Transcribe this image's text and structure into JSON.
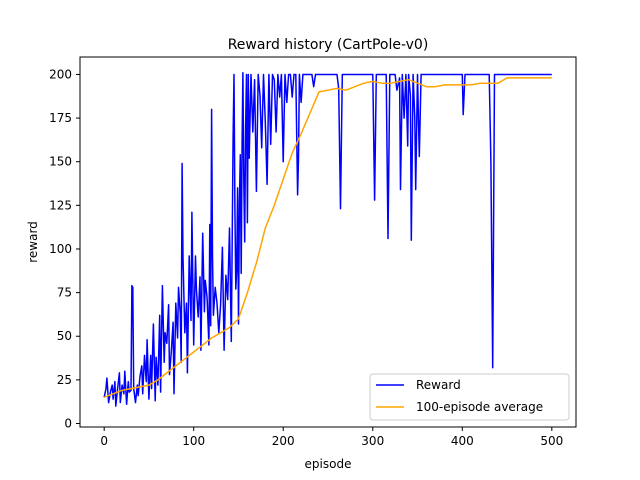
{
  "chart_data": {
    "type": "line",
    "title": "Reward history (CartPole-v0)",
    "xlabel": "episode",
    "ylabel": "reward",
    "xlim": [
      -27,
      527
    ],
    "ylim": [
      -2,
      210
    ],
    "xticks": [
      0,
      100,
      200,
      300,
      400,
      500
    ],
    "yticks": [
      0,
      25,
      50,
      75,
      100,
      125,
      150,
      175,
      200
    ],
    "grid": false,
    "legend_position": "lower-right",
    "series": [
      {
        "name": "Reward",
        "color": "#0000ff",
        "points": [
          [
            0,
            15
          ],
          [
            2,
            20
          ],
          [
            3,
            26
          ],
          [
            5,
            12
          ],
          [
            7,
            18
          ],
          [
            9,
            22
          ],
          [
            10,
            14
          ],
          [
            12,
            24
          ],
          [
            13,
            10
          ],
          [
            15,
            20
          ],
          [
            17,
            29
          ],
          [
            18,
            12
          ],
          [
            20,
            22
          ],
          [
            22,
            17
          ],
          [
            23,
            30
          ],
          [
            25,
            11
          ],
          [
            27,
            24
          ],
          [
            28,
            18
          ],
          [
            30,
            19
          ],
          [
            31,
            79
          ],
          [
            32,
            78
          ],
          [
            33,
            20
          ],
          [
            35,
            12
          ],
          [
            37,
            22
          ],
          [
            38,
            16
          ],
          [
            40,
            27
          ],
          [
            42,
            33
          ],
          [
            43,
            17
          ],
          [
            45,
            39
          ],
          [
            47,
            24
          ],
          [
            48,
            48
          ],
          [
            50,
            14
          ],
          [
            52,
            39
          ],
          [
            53,
            20
          ],
          [
            55,
            57
          ],
          [
            57,
            13
          ],
          [
            58,
            38
          ],
          [
            60,
            22
          ],
          [
            62,
            62
          ],
          [
            63,
            18
          ],
          [
            65,
            79
          ],
          [
            67,
            35
          ],
          [
            68,
            52
          ],
          [
            70,
            46
          ],
          [
            72,
            68
          ],
          [
            73,
            28
          ],
          [
            75,
            41
          ],
          [
            77,
            58
          ],
          [
            78,
            17
          ],
          [
            80,
            69
          ],
          [
            82,
            49
          ],
          [
            83,
            78
          ],
          [
            85,
            63
          ],
          [
            86,
            35
          ],
          [
            87,
            149
          ],
          [
            88,
            95
          ],
          [
            90,
            52
          ],
          [
            92,
            69
          ],
          [
            93,
            29
          ],
          [
            95,
            96
          ],
          [
            97,
            59
          ],
          [
            98,
            121
          ],
          [
            100,
            45
          ],
          [
            102,
            96
          ],
          [
            103,
            77
          ],
          [
            105,
            61
          ],
          [
            107,
            84
          ],
          [
            108,
            42
          ],
          [
            110,
            109
          ],
          [
            112,
            64
          ],
          [
            113,
            82
          ],
          [
            115,
            72
          ],
          [
            117,
            45
          ],
          [
            118,
            114
          ],
          [
            119,
            56
          ],
          [
            120,
            180
          ],
          [
            121,
            96
          ],
          [
            122,
            62
          ],
          [
            124,
            78
          ],
          [
            126,
            69
          ],
          [
            128,
            52
          ],
          [
            130,
            68
          ],
          [
            132,
            101
          ],
          [
            134,
            42
          ],
          [
            136,
            85
          ],
          [
            138,
            71
          ],
          [
            140,
            112
          ],
          [
            142,
            47
          ],
          [
            144,
            164
          ],
          [
            145,
            200
          ],
          [
            146,
            124
          ],
          [
            147,
            77
          ],
          [
            148,
            88
          ],
          [
            149,
            135
          ],
          [
            150,
            57
          ],
          [
            151,
            126
          ],
          [
            152,
            154
          ],
          [
            153,
            86
          ],
          [
            154,
            161
          ],
          [
            155,
            201
          ],
          [
            156,
            139
          ],
          [
            157,
            104
          ],
          [
            158,
            169
          ],
          [
            159,
            200
          ],
          [
            160,
            115
          ],
          [
            161,
            200
          ],
          [
            162,
            152
          ],
          [
            164,
            200
          ],
          [
            166,
            167
          ],
          [
            168,
            197
          ],
          [
            170,
            133
          ],
          [
            172,
            200
          ],
          [
            174,
            188
          ],
          [
            176,
            158
          ],
          [
            178,
            200
          ],
          [
            180,
            173
          ],
          [
            182,
            137
          ],
          [
            184,
            200
          ],
          [
            186,
            160
          ],
          [
            188,
            200
          ],
          [
            190,
            197
          ],
          [
            192,
            167
          ],
          [
            194,
            200
          ],
          [
            196,
            187
          ],
          [
            198,
            200
          ],
          [
            200,
            150
          ],
          [
            202,
            200
          ],
          [
            204,
            184
          ],
          [
            206,
            200
          ],
          [
            208,
            200
          ],
          [
            210,
            187
          ],
          [
            212,
            200
          ],
          [
            214,
            200
          ],
          [
            216,
            131
          ],
          [
            217,
            152
          ],
          [
            218,
            200
          ],
          [
            220,
            184
          ],
          [
            222,
            200
          ],
          [
            224,
            200
          ],
          [
            226,
            200
          ],
          [
            228,
            200
          ],
          [
            230,
            200
          ],
          [
            232,
            200
          ],
          [
            234,
            193
          ],
          [
            236,
            200
          ],
          [
            238,
            200
          ],
          [
            240,
            200
          ],
          [
            242,
            200
          ],
          [
            244,
            200
          ],
          [
            246,
            200
          ],
          [
            248,
            200
          ],
          [
            250,
            200
          ],
          [
            255,
            200
          ],
          [
            260,
            200
          ],
          [
            262,
            192
          ],
          [
            264,
            123
          ],
          [
            266,
            200
          ],
          [
            268,
            200
          ],
          [
            270,
            200
          ],
          [
            275,
            200
          ],
          [
            280,
            200
          ],
          [
            285,
            200
          ],
          [
            290,
            200
          ],
          [
            295,
            200
          ],
          [
            300,
            200
          ],
          [
            302,
            128
          ],
          [
            304,
            200
          ],
          [
            310,
            200
          ],
          [
            315,
            200
          ],
          [
            317,
            106
          ],
          [
            319,
            200
          ],
          [
            325,
            200
          ],
          [
            327,
            191
          ],
          [
            330,
            198
          ],
          [
            331,
            134
          ],
          [
            333,
            200
          ],
          [
            335,
            175
          ],
          [
            337,
            200
          ],
          [
            339,
            159
          ],
          [
            340,
            200
          ],
          [
            342,
            188
          ],
          [
            343,
            105
          ],
          [
            345,
            200
          ],
          [
            347,
            175
          ],
          [
            348,
            134
          ],
          [
            350,
            200
          ],
          [
            352,
            153
          ],
          [
            354,
            200
          ],
          [
            360,
            200
          ],
          [
            370,
            200
          ],
          [
            380,
            200
          ],
          [
            390,
            200
          ],
          [
            400,
            200
          ],
          [
            401,
            177
          ],
          [
            403,
            200
          ],
          [
            410,
            200
          ],
          [
            420,
            200
          ],
          [
            430,
            200
          ],
          [
            432,
            150
          ],
          [
            434,
            32
          ],
          [
            436,
            200
          ],
          [
            440,
            200
          ],
          [
            450,
            200
          ],
          [
            460,
            200
          ],
          [
            470,
            200
          ],
          [
            480,
            200
          ],
          [
            490,
            200
          ],
          [
            500,
            200
          ]
        ]
      },
      {
        "name": "100-episode average",
        "color": "#ffa500",
        "points": [
          [
            0,
            15
          ],
          [
            10,
            17
          ],
          [
            20,
            19
          ],
          [
            30,
            20
          ],
          [
            40,
            21
          ],
          [
            50,
            22
          ],
          [
            60,
            25
          ],
          [
            70,
            29
          ],
          [
            80,
            33
          ],
          [
            90,
            37
          ],
          [
            100,
            41
          ],
          [
            110,
            45
          ],
          [
            120,
            49
          ],
          [
            130,
            52
          ],
          [
            140,
            55
          ],
          [
            150,
            60
          ],
          [
            160,
            75
          ],
          [
            170,
            92
          ],
          [
            180,
            112
          ],
          [
            190,
            125
          ],
          [
            200,
            140
          ],
          [
            210,
            155
          ],
          [
            220,
            166
          ],
          [
            230,
            178
          ],
          [
            240,
            190
          ],
          [
            250,
            191
          ],
          [
            260,
            192
          ],
          [
            270,
            191
          ],
          [
            280,
            193
          ],
          [
            290,
            195
          ],
          [
            300,
            196
          ],
          [
            310,
            195
          ],
          [
            320,
            195
          ],
          [
            330,
            196
          ],
          [
            340,
            197
          ],
          [
            350,
            195
          ],
          [
            360,
            193
          ],
          [
            370,
            193
          ],
          [
            380,
            194
          ],
          [
            390,
            194
          ],
          [
            400,
            194
          ],
          [
            410,
            194
          ],
          [
            420,
            195
          ],
          [
            430,
            195
          ],
          [
            440,
            195
          ],
          [
            450,
            198
          ],
          [
            460,
            198
          ],
          [
            470,
            198
          ],
          [
            480,
            198
          ],
          [
            490,
            198
          ],
          [
            500,
            198
          ]
        ]
      }
    ]
  }
}
